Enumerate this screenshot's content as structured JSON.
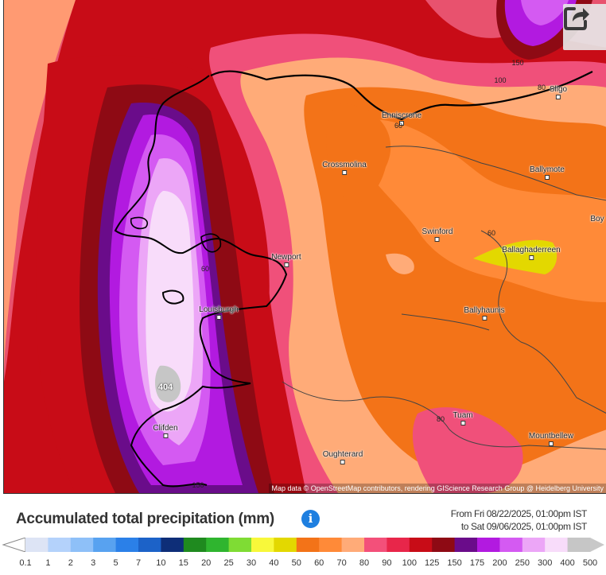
{
  "map": {
    "places": [
      {
        "name": "Enniscrone"
      },
      {
        "name": "Sligo"
      },
      {
        "name": "Crossmolina"
      },
      {
        "name": "Ballymote"
      },
      {
        "name": "Boy"
      },
      {
        "name": "Swinford"
      },
      {
        "name": "Newport"
      },
      {
        "name": "Ballaghaderreen"
      },
      {
        "name": "Louisburgh"
      },
      {
        "name": "Ballyhaunis"
      },
      {
        "name": "Tuam"
      },
      {
        "name": "Clifden"
      },
      {
        "name": "Mountbellew"
      },
      {
        "name": "Oughterard"
      }
    ],
    "contour_labels": [
      "150",
      "100",
      "80",
      "60",
      "60",
      "80",
      "60",
      "150"
    ],
    "max_label": "404",
    "attribution": "Map data © OpenStreetMap contributors, rendering GIScience Research Group @ Heidelberg University",
    "share_icon": "share-icon"
  },
  "header": {
    "title": "Accumulated total precipitation (mm)",
    "info_icon": "info-icon",
    "info_glyph": "i",
    "period_from": "From Fri 08/22/2025, 01:00pm IST",
    "period_to": "to Sat 09/06/2025, 01:00pm IST"
  },
  "legend": {
    "labels": [
      "0.1",
      "1",
      "2",
      "3",
      "5",
      "7",
      "10",
      "15",
      "20",
      "25",
      "30",
      "40",
      "50",
      "60",
      "70",
      "80",
      "90",
      "100",
      "125",
      "150",
      "175",
      "200",
      "250",
      "300",
      "400",
      "500"
    ],
    "colors": [
      "#dde4f5",
      "#b4d2fb",
      "#8ec0f8",
      "#58a2f0",
      "#2b80e8",
      "#1c62c8",
      "#0e2e78",
      "#1f8a1f",
      "#2fb52f",
      "#7fdc34",
      "#f8f83a",
      "#e3d800",
      "#f37318",
      "#ff8a38",
      "#ffab78",
      "#f3507a",
      "#e8264a",
      "#c80c17",
      "#8e0a14",
      "#6a0c8a",
      "#b21ae0",
      "#d45af2",
      "#eca6f7",
      "#f8dcfa",
      "#c6c6c6"
    ],
    "arrow_color": "#c8c8c8"
  }
}
